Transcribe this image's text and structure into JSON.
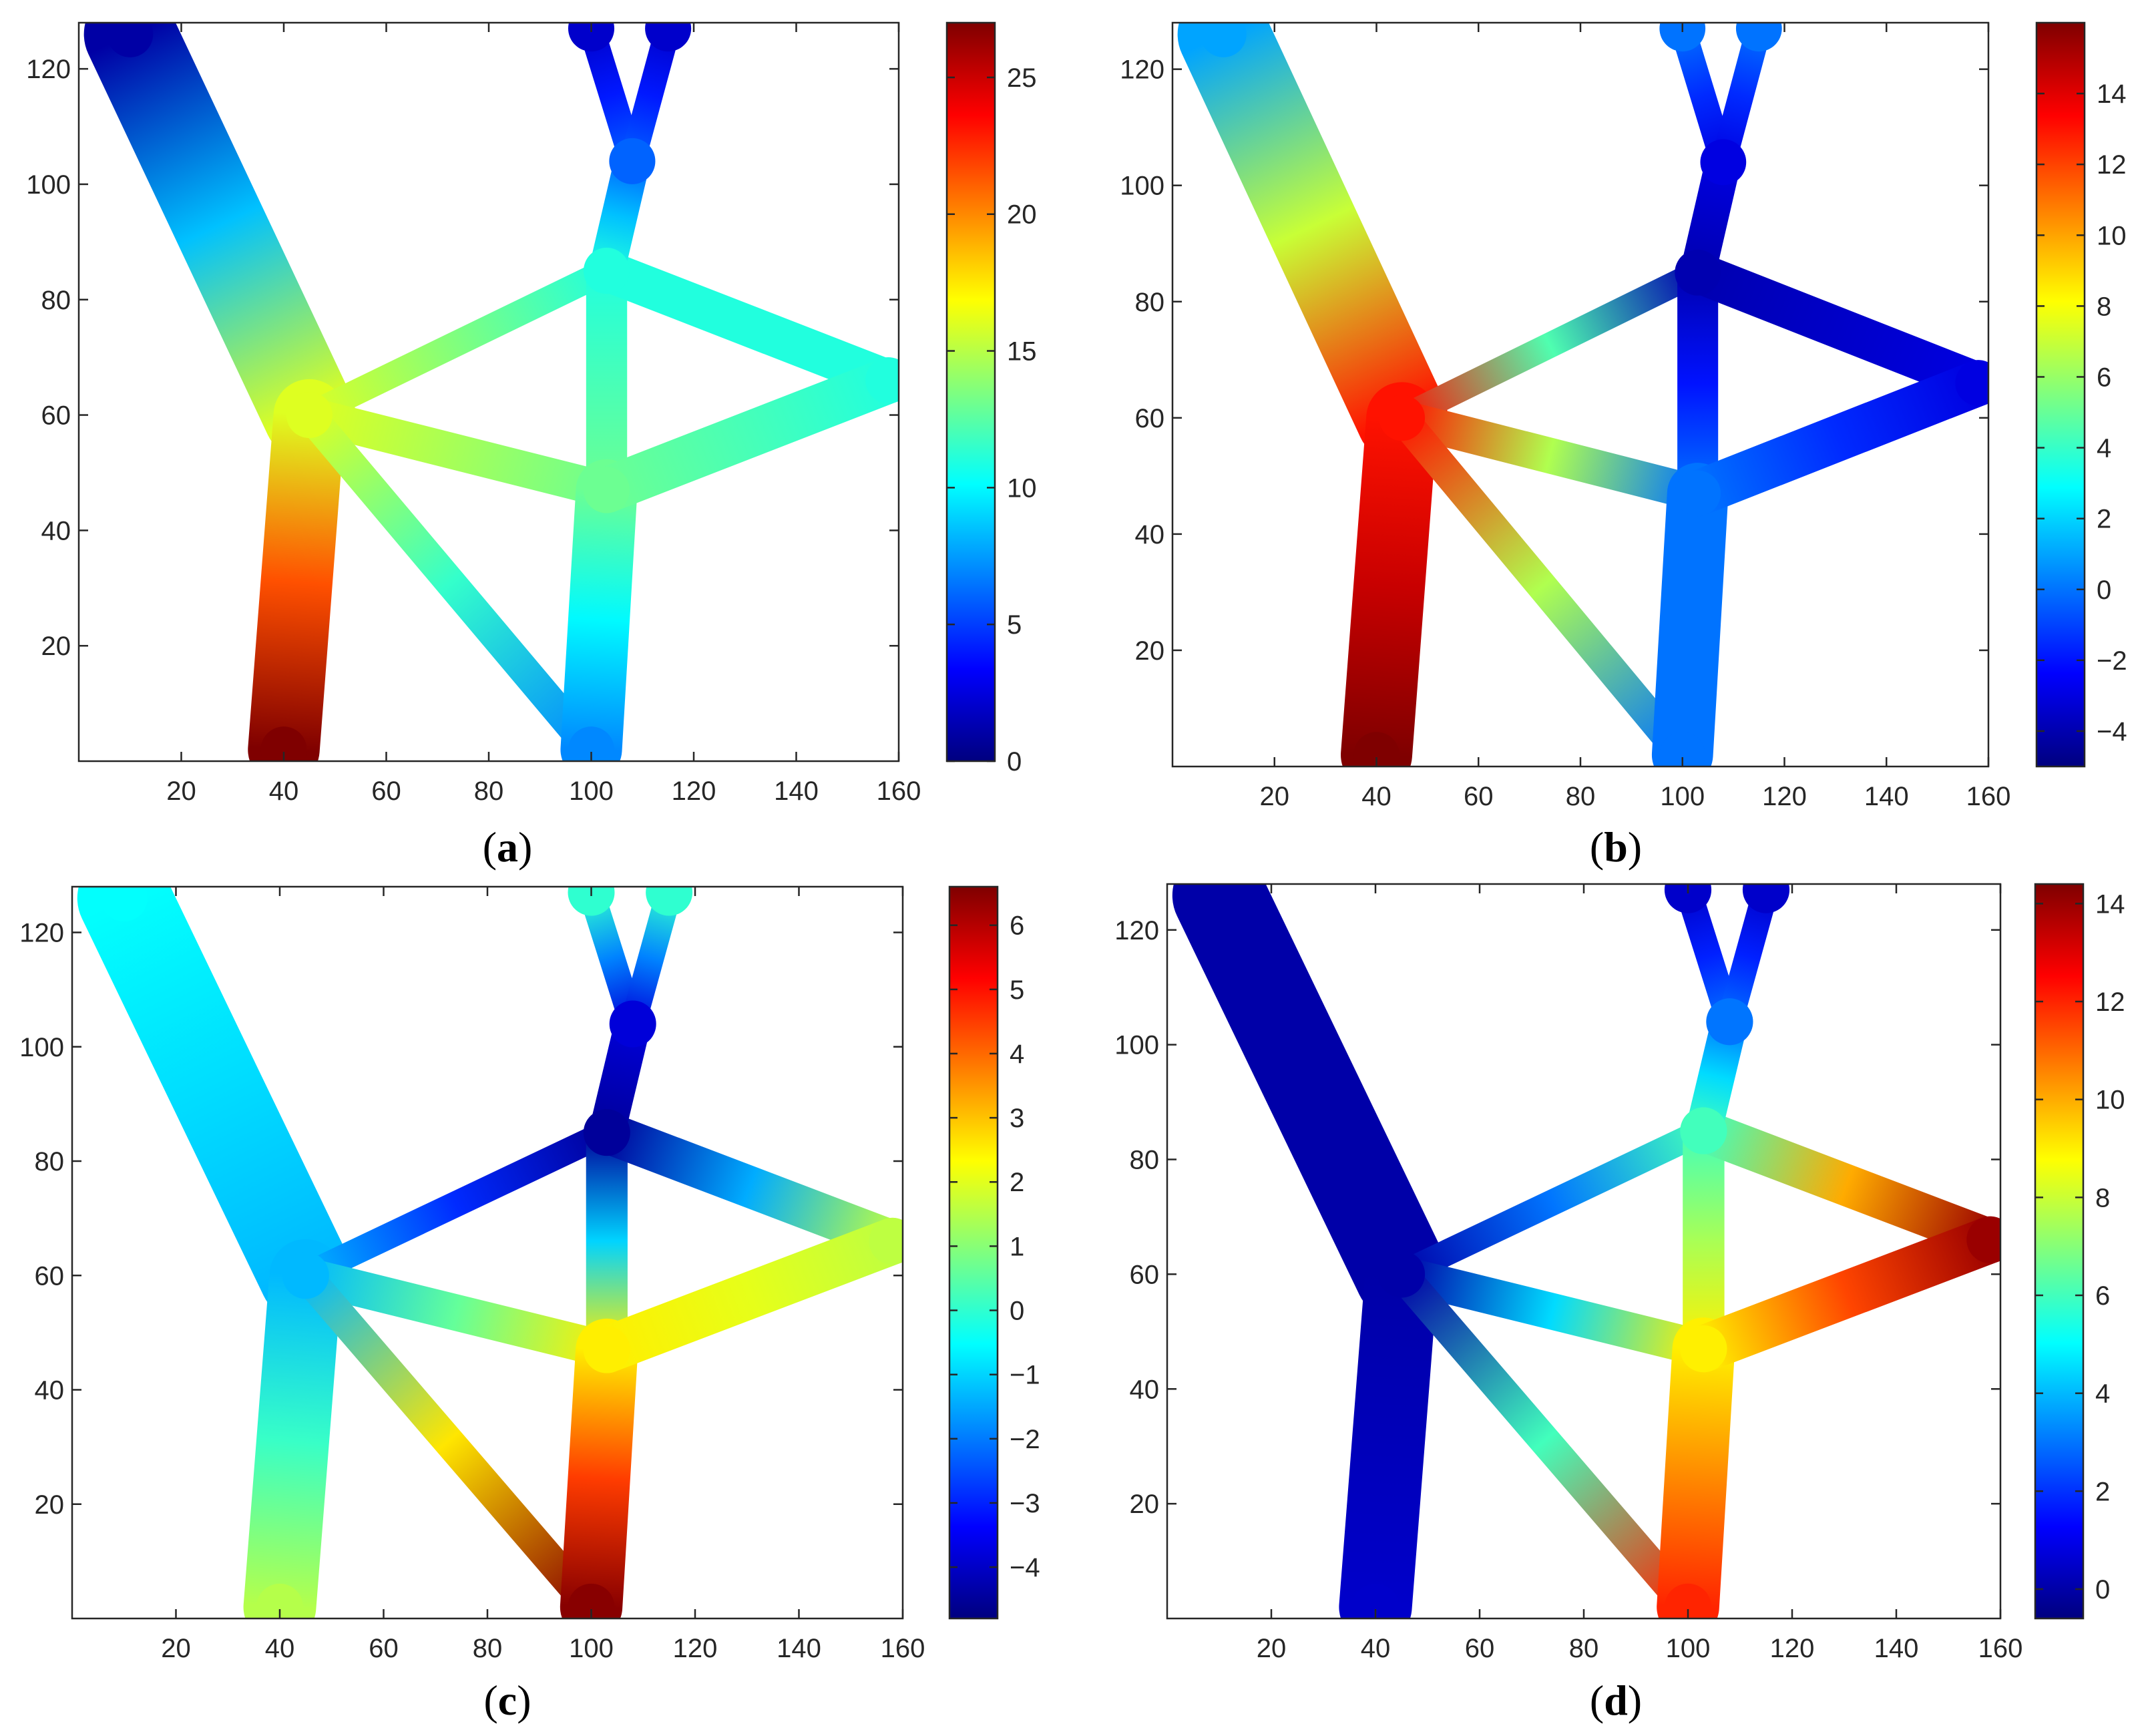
{
  "figure": {
    "panels": [
      "(a)",
      "(b)",
      "(c)",
      "(d)"
    ]
  },
  "colormap": "jet",
  "colormap_stops": [
    "#00007f",
    "#0000ff",
    "#007fff",
    "#00ffff",
    "#7fff7f",
    "#ffff00",
    "#ff7f00",
    "#ff0000",
    "#7f0000"
  ],
  "chart_data": [
    {
      "type": "heatmap",
      "panel": "a",
      "label": "(a)",
      "xlim": [
        0,
        160
      ],
      "ylim": [
        0,
        128
      ],
      "xticks": [
        20,
        40,
        60,
        80,
        100,
        120,
        140,
        160
      ],
      "yticks": [
        20,
        40,
        60,
        80,
        100,
        120
      ],
      "colorbar": {
        "min": 0,
        "max": 27,
        "ticks": [
          0,
          5,
          10,
          15,
          20,
          25
        ]
      },
      "structure_nodes": [
        {
          "id": "top_left",
          "x": 10,
          "y": 126,
          "value": 1
        },
        {
          "id": "junction",
          "x": 45,
          "y": 60,
          "value": 16
        },
        {
          "id": "support",
          "x": 40,
          "y": 2,
          "value": 27
        },
        {
          "id": "upper_node",
          "x": 103,
          "y": 85,
          "value": 11
        },
        {
          "id": "mid_node",
          "x": 103,
          "y": 47,
          "value": 13
        },
        {
          "id": "bottom_node",
          "x": 100,
          "y": 2,
          "value": 7
        },
        {
          "id": "right_tip",
          "x": 158,
          "y": 66,
          "value": 11
        },
        {
          "id": "top_fork_l",
          "x": 100,
          "y": 127,
          "value": 2
        },
        {
          "id": "top_fork_r",
          "x": 115,
          "y": 127,
          "value": 2
        },
        {
          "id": "inner_top",
          "x": 108,
          "y": 104,
          "value": 6
        }
      ]
    },
    {
      "type": "heatmap",
      "panel": "b",
      "label": "(b)",
      "xlim": [
        0,
        160
      ],
      "ylim": [
        0,
        128
      ],
      "xticks": [
        20,
        40,
        60,
        80,
        100,
        120,
        140,
        160
      ],
      "yticks": [
        20,
        40,
        60,
        80,
        100,
        120
      ],
      "colorbar": {
        "min": -5,
        "max": 16,
        "ticks": [
          -4,
          -2,
          0,
          2,
          4,
          6,
          8,
          10,
          12,
          14
        ]
      },
      "structure_nodes": [
        {
          "id": "top_left",
          "x": 10,
          "y": 126,
          "value": 1
        },
        {
          "id": "junction",
          "x": 45,
          "y": 60,
          "value": 13
        },
        {
          "id": "support",
          "x": 40,
          "y": 2,
          "value": 16
        },
        {
          "id": "upper_node",
          "x": 103,
          "y": 85,
          "value": -4
        },
        {
          "id": "mid_node",
          "x": 103,
          "y": 47,
          "value": 0
        },
        {
          "id": "bottom_node",
          "x": 100,
          "y": 2,
          "value": 0
        },
        {
          "id": "right_tip",
          "x": 158,
          "y": 66,
          "value": -3
        },
        {
          "id": "top_fork_l",
          "x": 100,
          "y": 127,
          "value": 0
        },
        {
          "id": "top_fork_r",
          "x": 115,
          "y": 127,
          "value": 0
        },
        {
          "id": "inner_top",
          "x": 108,
          "y": 104,
          "value": -3
        }
      ]
    },
    {
      "type": "heatmap",
      "panel": "c",
      "label": "(c)",
      "xlim": [
        0,
        160
      ],
      "ylim": [
        0,
        128
      ],
      "xticks": [
        20,
        40,
        60,
        80,
        100,
        120,
        140,
        160
      ],
      "yticks": [
        20,
        40,
        60,
        80,
        100,
        120
      ],
      "colorbar": {
        "min": -4.8,
        "max": 6.6,
        "ticks": [
          -4,
          -3,
          -2,
          -1,
          0,
          1,
          2,
          3,
          4,
          5,
          6
        ]
      },
      "structure_nodes": [
        {
          "id": "top_left",
          "x": 10,
          "y": 126,
          "value": -0.5
        },
        {
          "id": "junction",
          "x": 45,
          "y": 60,
          "value": -1.3
        },
        {
          "id": "support",
          "x": 40,
          "y": 2,
          "value": 1.5
        },
        {
          "id": "upper_node",
          "x": 103,
          "y": 85,
          "value": -4.5
        },
        {
          "id": "mid_node",
          "x": 103,
          "y": 47,
          "value": 2.5
        },
        {
          "id": "bottom_node",
          "x": 100,
          "y": 2,
          "value": 6.5
        },
        {
          "id": "right_tip",
          "x": 158,
          "y": 66,
          "value": 1.6
        },
        {
          "id": "top_fork_l",
          "x": 100,
          "y": 127,
          "value": 0
        },
        {
          "id": "top_fork_r",
          "x": 115,
          "y": 127,
          "value": 0
        },
        {
          "id": "inner_top",
          "x": 108,
          "y": 104,
          "value": -3.8
        }
      ]
    },
    {
      "type": "heatmap",
      "panel": "d",
      "label": "(d)",
      "xlim": [
        0,
        160
      ],
      "ylim": [
        0,
        128
      ],
      "xticks": [
        20,
        40,
        60,
        80,
        100,
        120,
        140,
        160
      ],
      "yticks": [
        20,
        40,
        60,
        80,
        100,
        120
      ],
      "colorbar": {
        "min": -0.6,
        "max": 14.4,
        "ticks": [
          0,
          2,
          4,
          6,
          8,
          10,
          12,
          14
        ]
      },
      "structure_nodes": [
        {
          "id": "top_left",
          "x": 10,
          "y": 126,
          "value": 0
        },
        {
          "id": "junction",
          "x": 45,
          "y": 60,
          "value": 0
        },
        {
          "id": "support",
          "x": 40,
          "y": 2,
          "value": 0.5
        },
        {
          "id": "upper_node",
          "x": 103,
          "y": 85,
          "value": 6
        },
        {
          "id": "mid_node",
          "x": 103,
          "y": 47,
          "value": 9
        },
        {
          "id": "bottom_node",
          "x": 100,
          "y": 2,
          "value": 12
        },
        {
          "id": "right_tip",
          "x": 158,
          "y": 66,
          "value": 14
        },
        {
          "id": "top_fork_l",
          "x": 100,
          "y": 127,
          "value": 0.5
        },
        {
          "id": "top_fork_r",
          "x": 115,
          "y": 127,
          "value": 0.5
        },
        {
          "id": "inner_top",
          "x": 108,
          "y": 104,
          "value": 3
        }
      ]
    }
  ]
}
